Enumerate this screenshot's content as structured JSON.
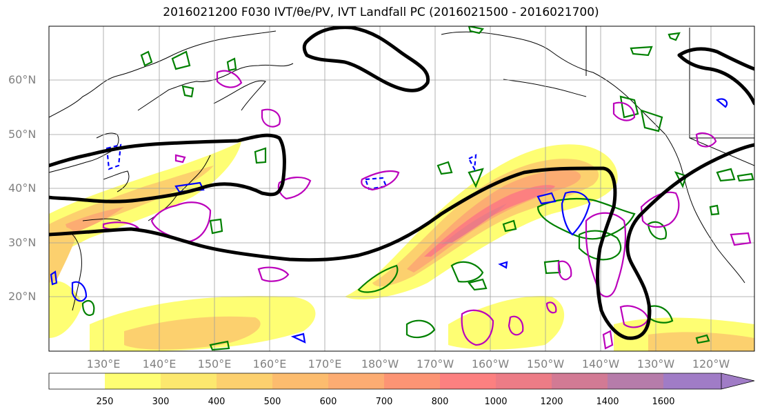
{
  "title": "2016021200 F030 IVT/θe/PV, IVT Landfall PC (2016021500 - 2016021700)",
  "map": {
    "lat_labels": [
      "60°N",
      "50°N",
      "40°N",
      "30°N",
      "20°N"
    ],
    "lon_labels": [
      "130°E",
      "140°E",
      "150°E",
      "160°E",
      "170°E",
      "180°W",
      "170°W",
      "160°W",
      "150°W",
      "140°W",
      "130°W",
      "120°W"
    ],
    "ivt_filled_contours": "IVT shading (yellow→red→purple)",
    "theta_e_contours_color": "#000000",
    "pv_contour_colors": [
      "#008000",
      "#0000ff",
      "#bb00bb"
    ]
  },
  "colorbar": {
    "ticks": [
      "250",
      "300",
      "400",
      "500",
      "600",
      "700",
      "800",
      "1000",
      "1200",
      "1400",
      "1600"
    ],
    "colors": [
      "#ffffff",
      "#fefe73",
      "#fce86e",
      "#fcd06e",
      "#fcbc6e",
      "#fcac72",
      "#fc9474",
      "#fc8080",
      "#ec7c86",
      "#d27a94",
      "#b67caa",
      "#a07cc6"
    ]
  }
}
